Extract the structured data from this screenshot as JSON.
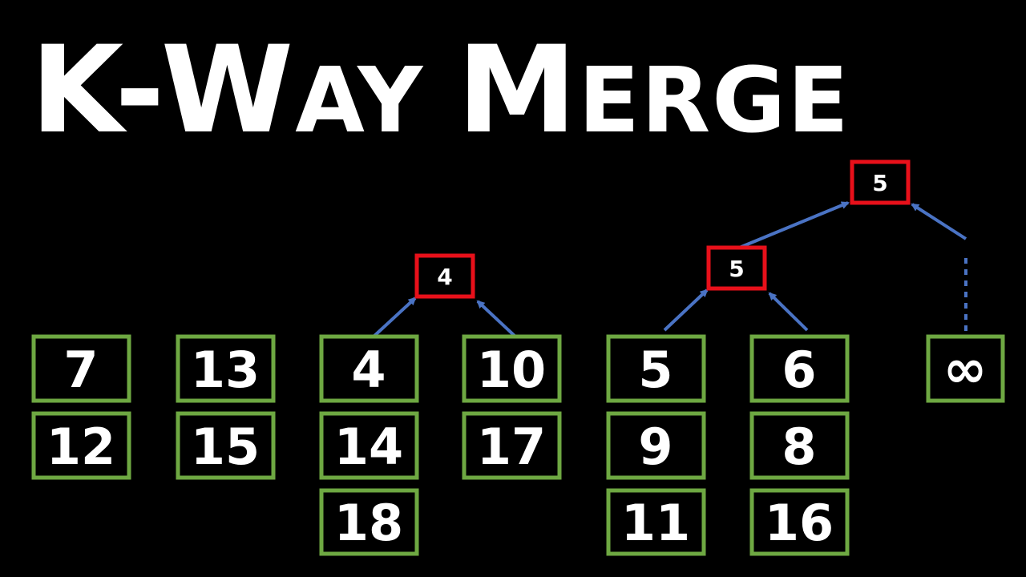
{
  "title": {
    "part1_big": "K",
    "hyphen": "-",
    "part2_big": "W",
    "part2_small": "AY",
    "part3_big": "M",
    "part3_small": "ERGE"
  },
  "colors": {
    "background": "#000000",
    "list_border": "#6ea842",
    "node_border": "#e8101a",
    "arrow": "#4a73c4",
    "text": "#ffffff"
  },
  "lists": [
    {
      "id": "list-1",
      "values": [
        "7",
        "12"
      ]
    },
    {
      "id": "list-2",
      "values": [
        "13",
        "15"
      ]
    },
    {
      "id": "list-3",
      "values": [
        "4",
        "14",
        "18"
      ]
    },
    {
      "id": "list-4",
      "values": [
        "10",
        "17"
      ]
    },
    {
      "id": "list-5",
      "values": [
        "5",
        "9",
        "11"
      ]
    },
    {
      "id": "list-6",
      "values": [
        "6",
        "8",
        "16"
      ]
    },
    {
      "id": "list-7",
      "values": [
        "∞"
      ]
    }
  ],
  "tree_nodes": [
    {
      "id": "node-a",
      "value": "4"
    },
    {
      "id": "node-b",
      "value": "5"
    },
    {
      "id": "node-root",
      "value": "5"
    }
  ]
}
